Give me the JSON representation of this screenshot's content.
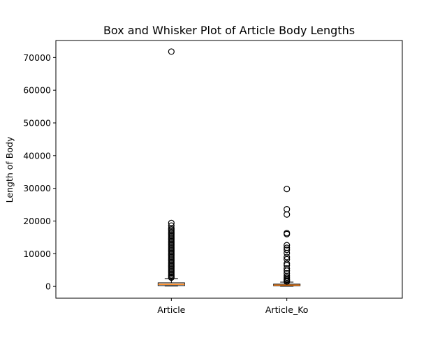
{
  "chart_data": {
    "type": "box",
    "title": "Box and Whisker Plot of Article Body Lengths",
    "xlabel": "",
    "ylabel": "Length of Body",
    "categories": [
      "Article",
      "Article_Ko"
    ],
    "ylim": [
      -3600,
      75200
    ],
    "yticks": [
      0,
      10000,
      20000,
      30000,
      40000,
      50000,
      60000,
      70000
    ],
    "grid": false,
    "colors": {
      "box": "#000000",
      "median": "#ff7f0e",
      "flier": "#000000"
    },
    "boxes": [
      {
        "name": "Article",
        "min": 100,
        "q1": 250,
        "median": 650,
        "q3": 1100,
        "max": 2400,
        "fliers": [
          71800,
          19400,
          18600,
          17800,
          17400,
          17000,
          16600,
          16200,
          15800,
          15400,
          15000,
          14600,
          14200,
          13800,
          13400,
          13000,
          12600,
          12200,
          11800,
          11400,
          11000,
          10600,
          10200,
          9800,
          9400,
          9000,
          8600,
          8200,
          7800,
          7400,
          7000,
          6600,
          6200,
          5800,
          5400,
          5000,
          4600,
          4200,
          3800,
          3400,
          3000,
          2700
        ]
      },
      {
        "name": "Article_Ko",
        "min": 50,
        "q1": 200,
        "median": 400,
        "q3": 700,
        "max": 1300,
        "fliers": [
          29800,
          23600,
          22000,
          16300,
          16000,
          12600,
          11800,
          11200,
          10200,
          9000,
          8300,
          7000,
          6500,
          5500,
          4800,
          4000,
          3200,
          2700,
          2300,
          2000,
          1700,
          1500
        ]
      }
    ]
  }
}
